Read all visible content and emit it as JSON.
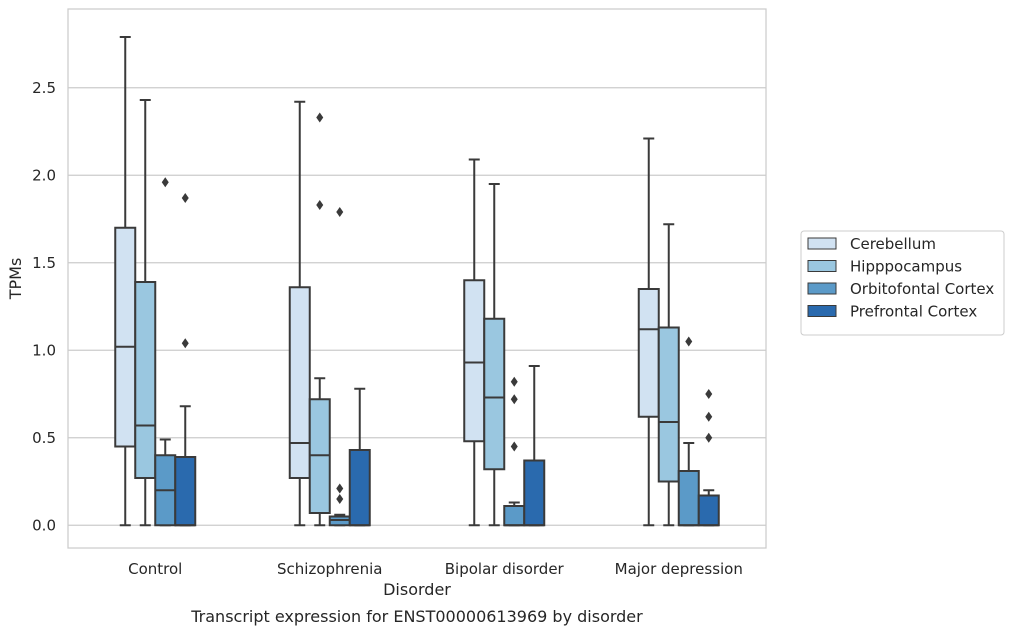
{
  "chart_data": {
    "type": "boxplot",
    "caption": "Transcript expression for ENST00000613969 by disorder",
    "xlabel": "Disorder",
    "ylabel": "TPMs",
    "ylim": [
      -0.13,
      2.95
    ],
    "yticks": [
      "0.0",
      "0.5",
      "1.0",
      "1.5",
      "2.0",
      "2.5"
    ],
    "grid": "horizontal",
    "legend_position": "right",
    "categories": [
      "Control",
      "Schizophrenia",
      "Bipolar disorder",
      "Major depression"
    ],
    "series": [
      {
        "name": "Cerebellum",
        "color": "#d1e2f2",
        "boxes": [
          {
            "whislo": 0.0,
            "q1": 0.45,
            "med": 1.02,
            "q3": 1.7,
            "whishi": 2.79,
            "fliers": []
          },
          {
            "whislo": 0.0,
            "q1": 0.27,
            "med": 0.47,
            "q3": 1.36,
            "whishi": 2.42,
            "fliers": []
          },
          {
            "whislo": 0.0,
            "q1": 0.48,
            "med": 0.93,
            "q3": 1.4,
            "whishi": 2.09,
            "fliers": []
          },
          {
            "whislo": 0.0,
            "q1": 0.62,
            "med": 1.12,
            "q3": 1.35,
            "whishi": 2.21,
            "fliers": []
          }
        ]
      },
      {
        "name": "Hipppocampus",
        "color": "#9ac7e0",
        "boxes": [
          {
            "whislo": 0.0,
            "q1": 0.27,
            "med": 0.57,
            "q3": 1.39,
            "whishi": 2.43,
            "fliers": []
          },
          {
            "whislo": 0.0,
            "q1": 0.07,
            "med": 0.4,
            "q3": 0.72,
            "whishi": 0.84,
            "fliers": [
              2.33,
              1.83
            ]
          },
          {
            "whislo": 0.0,
            "q1": 0.32,
            "med": 0.73,
            "q3": 1.18,
            "whishi": 1.95,
            "fliers": []
          },
          {
            "whislo": 0.0,
            "q1": 0.25,
            "med": 0.59,
            "q3": 1.13,
            "whishi": 1.72,
            "fliers": []
          }
        ]
      },
      {
        "name": "Orbitofontal Cortex",
        "color": "#5b9ac8",
        "boxes": [
          {
            "whislo": 0.0,
            "q1": 0.0,
            "med": 0.2,
            "q3": 0.4,
            "whishi": 0.49,
            "fliers": [
              1.96
            ]
          },
          {
            "whislo": 0.0,
            "q1": 0.0,
            "med": 0.03,
            "q3": 0.05,
            "whishi": 0.06,
            "fliers": [
              1.79,
              0.21,
              0.15
            ]
          },
          {
            "whislo": 0.0,
            "q1": 0.0,
            "med": 0.0,
            "q3": 0.11,
            "whishi": 0.13,
            "fliers": [
              0.82,
              0.72,
              0.45
            ]
          },
          {
            "whislo": 0.0,
            "q1": 0.0,
            "med": 0.0,
            "q3": 0.31,
            "whishi": 0.47,
            "fliers": [
              1.05
            ]
          }
        ]
      },
      {
        "name": "Prefrontal Cortex",
        "color": "#2a6aae",
        "boxes": [
          {
            "whislo": 0.0,
            "q1": 0.0,
            "med": 0.0,
            "q3": 0.39,
            "whishi": 0.68,
            "fliers": [
              1.87,
              1.04
            ]
          },
          {
            "whislo": 0.0,
            "q1": 0.0,
            "med": 0.0,
            "q3": 0.43,
            "whishi": 0.78,
            "fliers": []
          },
          {
            "whislo": 0.0,
            "q1": 0.0,
            "med": 0.0,
            "q3": 0.37,
            "whishi": 0.91,
            "fliers": []
          },
          {
            "whislo": 0.0,
            "q1": 0.0,
            "med": 0.0,
            "q3": 0.17,
            "whishi": 0.2,
            "fliers": [
              0.75,
              0.62,
              0.5
            ]
          }
        ]
      }
    ]
  }
}
